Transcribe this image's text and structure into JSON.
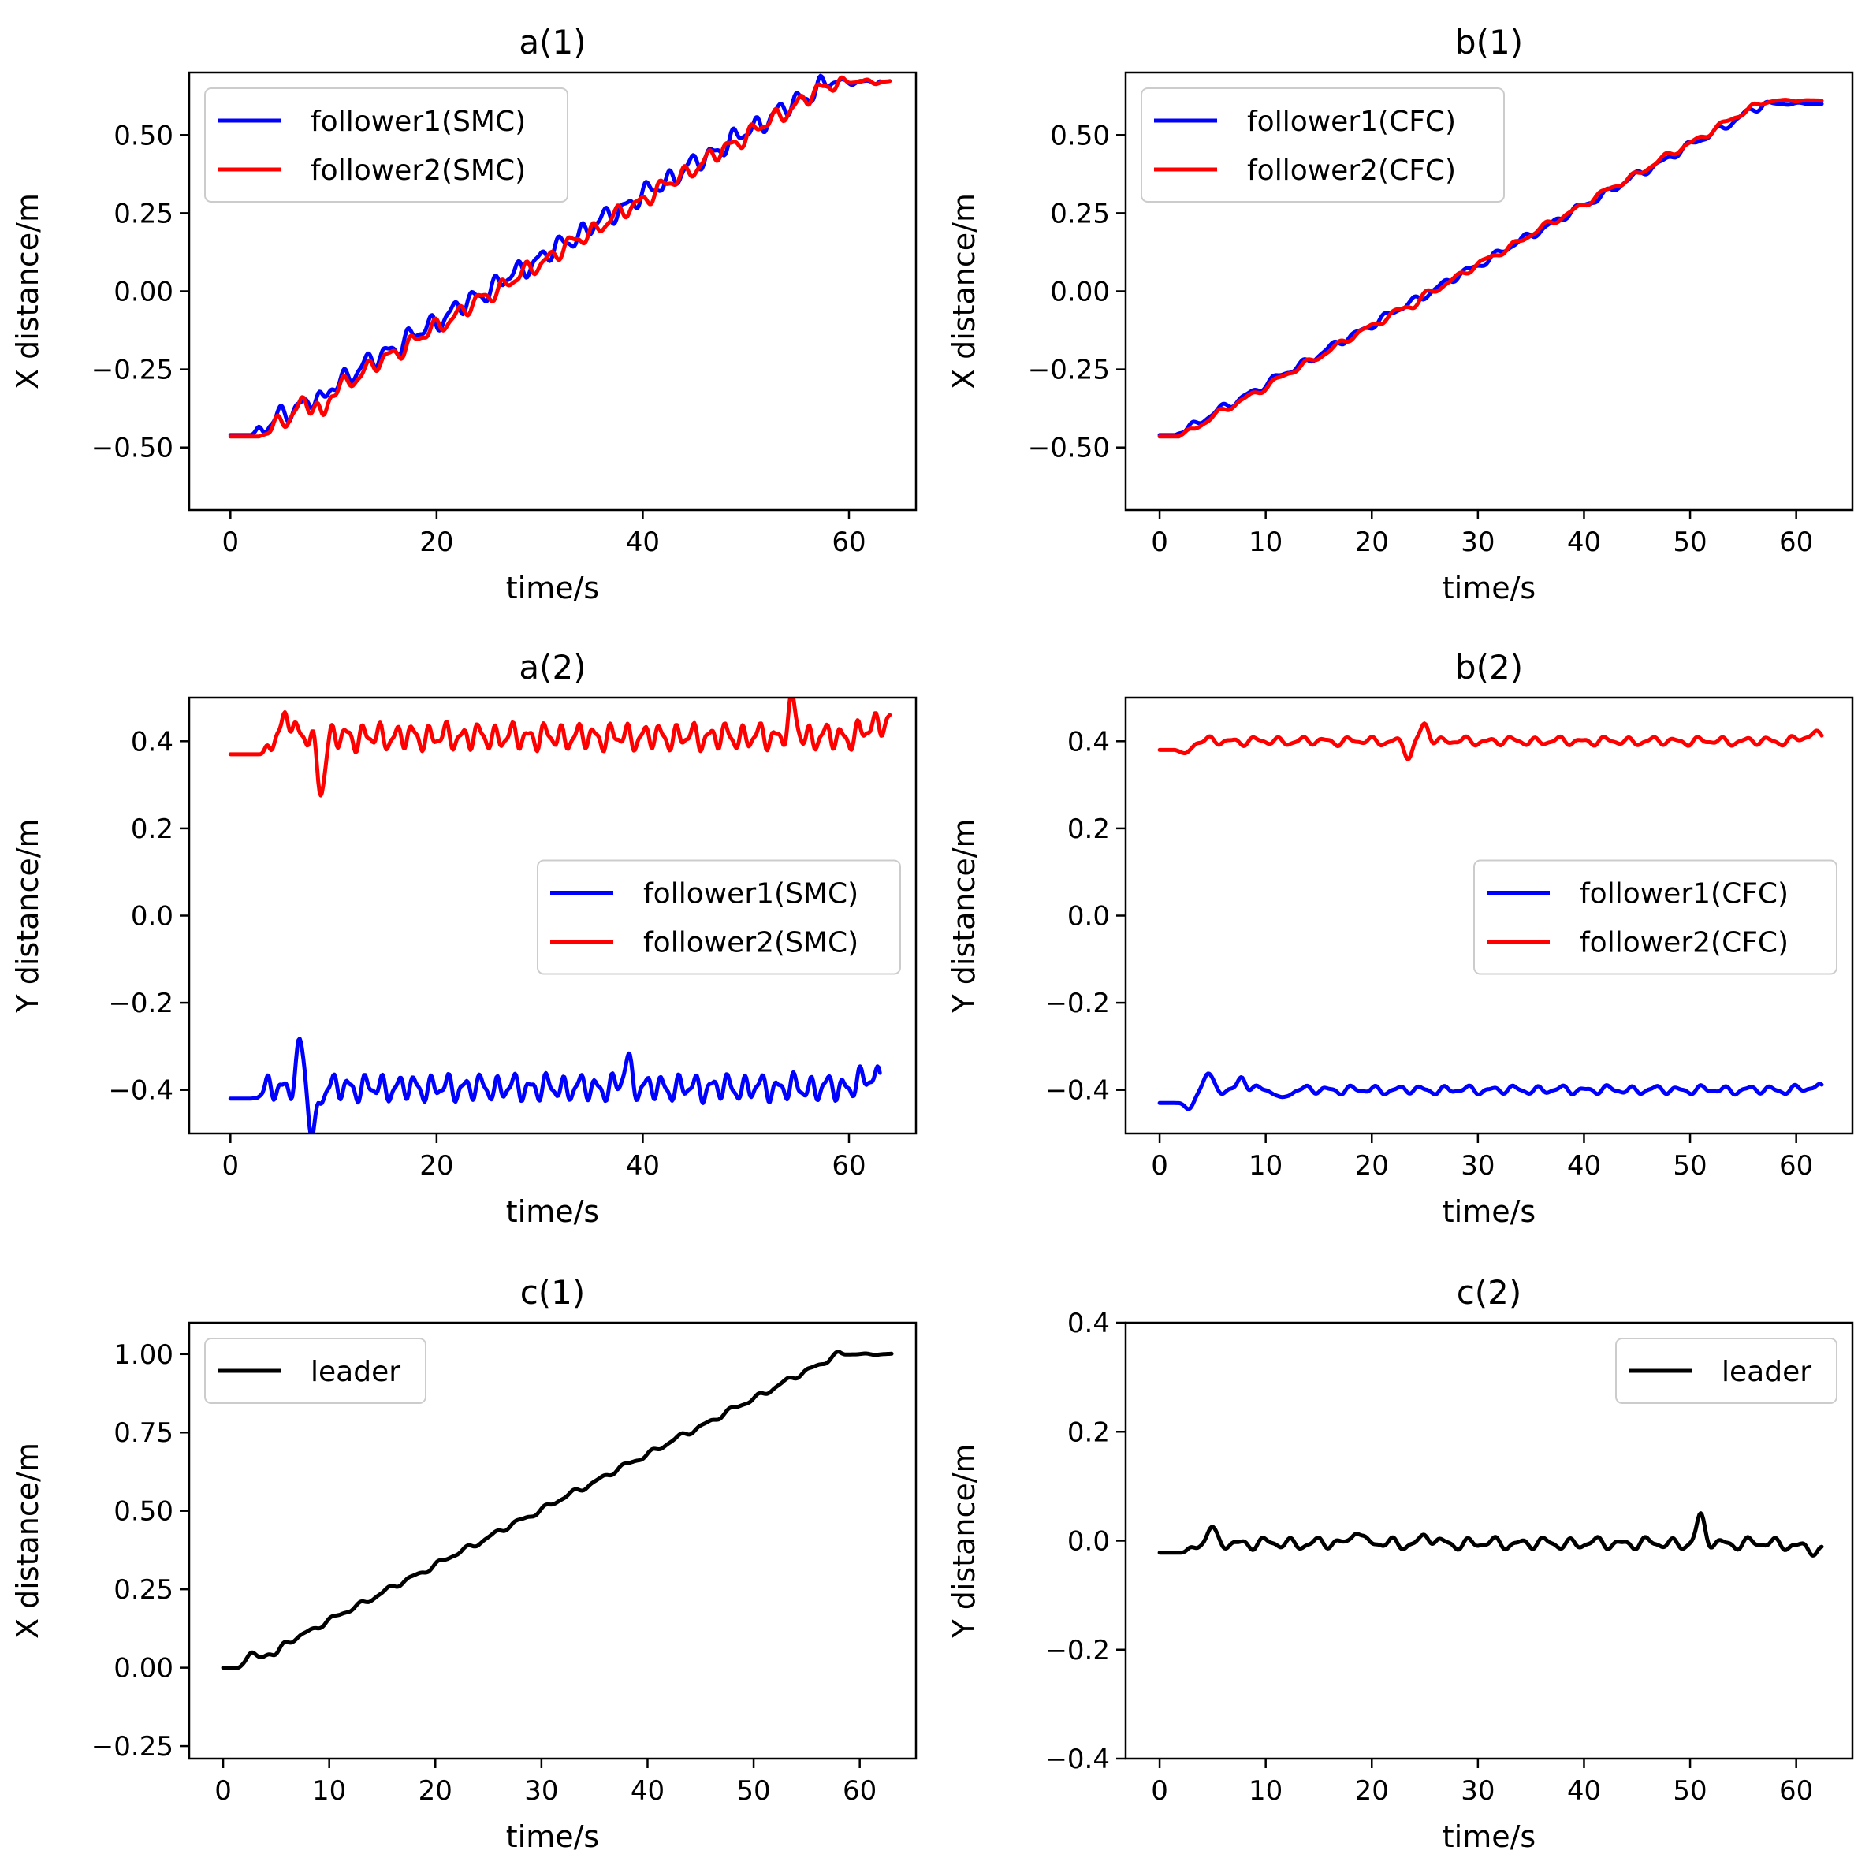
{
  "figure": {
    "colors": {
      "follower1": "#0000ff",
      "follower2": "#ff0000",
      "leader": "#000000"
    }
  },
  "chart_data": [
    {
      "id": "a1",
      "type": "line",
      "title": "a(1)",
      "xlabel": "time/s",
      "ylabel": "X distance/m",
      "xlim": [
        -4,
        66.5
      ],
      "ylim": [
        -0.7,
        0.7
      ],
      "xticks": [
        0,
        20,
        40,
        60
      ],
      "xtick_labels": [
        "0",
        "20",
        "40",
        "60"
      ],
      "yticks": [
        -0.5,
        -0.25,
        0,
        0.25,
        0.5
      ],
      "ytick_labels": [
        "−0.50",
        "−0.25",
        "0.00",
        "0.25",
        "0.50"
      ],
      "legend": {
        "position": "top-left"
      },
      "series": [
        {
          "name": "follower1(SMC)",
          "color": "#0000ff",
          "gen": {
            "t0": 0,
            "t1": 63,
            "start": 2.0,
            "v0": -0.46,
            "v1": 0.67,
            "end": 58,
            "osc": 0.03,
            "period": 2.1,
            "phase": 0.0,
            "bumps": [
              [
                9,
                -0.04
              ]
            ]
          },
          "x": [
            0,
            2,
            5,
            10,
            15,
            20,
            25,
            30,
            35,
            40,
            45,
            50,
            55,
            58,
            60,
            63
          ],
          "y": [
            -0.46,
            -0.46,
            -0.37,
            -0.25,
            -0.16,
            -0.07,
            0.03,
            0.11,
            0.22,
            0.32,
            0.41,
            0.52,
            0.6,
            0.67,
            0.66,
            0.67
          ]
        },
        {
          "name": "follower2(SMC)",
          "color": "#ff0000",
          "gen": {
            "t0": 0,
            "t1": 64,
            "start": 2.8,
            "v0": -0.465,
            "v1": 0.67,
            "end": 58.5,
            "osc": 0.025,
            "period": 2.2,
            "phase": 1.5,
            "bumps": [
              [
                9,
                -0.07
              ],
              [
                7,
                0.03
              ]
            ]
          },
          "x": [
            0,
            2.8,
            5,
            10,
            15,
            20,
            25,
            30,
            35,
            40,
            45,
            50,
            55,
            58.5,
            60,
            64
          ],
          "y": [
            -0.465,
            -0.465,
            -0.4,
            -0.3,
            -0.19,
            -0.1,
            0.01,
            0.09,
            0.19,
            0.29,
            0.38,
            0.48,
            0.58,
            0.67,
            0.66,
            0.67
          ]
        }
      ]
    },
    {
      "id": "b1",
      "type": "line",
      "title": "b(1)",
      "xlabel": "time/s",
      "ylabel": "X distance/m",
      "xlim": [
        -3.2,
        65.3
      ],
      "ylim": [
        -0.7,
        0.7
      ],
      "xticks": [
        0,
        10,
        20,
        30,
        40,
        50,
        60
      ],
      "xtick_labels": [
        "0",
        "10",
        "20",
        "30",
        "40",
        "50",
        "60"
      ],
      "yticks": [
        -0.5,
        -0.25,
        0,
        0.25,
        0.5
      ],
      "ytick_labels": [
        "−0.50",
        "−0.25",
        "0.00",
        "0.25",
        "0.50"
      ],
      "legend": {
        "position": "top-left"
      },
      "series": [
        {
          "name": "follower1(CFC)",
          "color": "#0000ff",
          "gen": {
            "t0": 0,
            "t1": 62.5,
            "start": 1.5,
            "v0": -0.46,
            "v1": 0.6,
            "end": 57,
            "osc": 0.012,
            "period": 2.6,
            "phase": 0.3,
            "bumps": []
          },
          "x": [
            0,
            1.5,
            5,
            10,
            20,
            30,
            40,
            50,
            57,
            62.5
          ],
          "y": [
            -0.46,
            -0.46,
            -0.39,
            -0.28,
            -0.11,
            0.1,
            0.27,
            0.47,
            0.6,
            0.6
          ]
        },
        {
          "name": "follower2(CFC)",
          "color": "#ff0000",
          "gen": {
            "t0": 0,
            "t1": 62.5,
            "start": 1.8,
            "v0": -0.465,
            "v1": 0.61,
            "end": 57,
            "osc": 0.01,
            "period": 2.8,
            "phase": 1.8,
            "bumps": [
              [
                24,
                -0.015
              ]
            ]
          },
          "x": [
            0,
            1.8,
            5,
            10,
            20,
            30,
            40,
            50,
            57,
            62.5
          ],
          "y": [
            -0.465,
            -0.465,
            -0.39,
            -0.29,
            -0.12,
            0.09,
            0.26,
            0.46,
            0.61,
            0.61
          ]
        }
      ]
    },
    {
      "id": "a2",
      "type": "line",
      "title": "a(2)",
      "xlabel": "time/s",
      "ylabel": "Y distance/m",
      "xlim": [
        -4,
        66.5
      ],
      "ylim": [
        -0.5,
        0.5
      ],
      "xticks": [
        0,
        20,
        40,
        60
      ],
      "xtick_labels": [
        "0",
        "20",
        "40",
        "60"
      ],
      "yticks": [
        -0.4,
        -0.2,
        0,
        0.2,
        0.4
      ],
      "ytick_labels": [
        "−0.4",
        "−0.2",
        "0.0",
        "0.2",
        "0.4"
      ],
      "legend": {
        "position": "center-right"
      },
      "series": [
        {
          "name": "follower1(SMC)",
          "color": "#0000ff",
          "gen": {
            "t0": 0,
            "t1": 63,
            "start": 2.0,
            "v0": -0.42,
            "v1": -0.37,
            "base": -0.395,
            "osc": 0.028,
            "period": 1.6,
            "phase": 0.4,
            "bumps": [
              [
                6.8,
                0.09
              ],
              [
                8.0,
                -0.11
              ],
              [
                38.5,
                0.06
              ]
            ]
          },
          "x": [
            0,
            2,
            7,
            8,
            20,
            38.5,
            50,
            63
          ],
          "y": [
            -0.42,
            -0.42,
            -0.29,
            -0.5,
            -0.4,
            -0.31,
            -0.44,
            -0.37
          ]
        },
        {
          "name": "follower2(SMC)",
          "color": "#ff0000",
          "gen": {
            "t0": 0,
            "t1": 64,
            "start": 2.8,
            "v0": 0.37,
            "v1": 0.45,
            "base": 0.41,
            "osc": 0.028,
            "period": 1.6,
            "phase": 1.2,
            "bumps": [
              [
                5.5,
                0.06
              ],
              [
                8.8,
                -0.11
              ],
              [
                54.5,
                0.07
              ]
            ]
          },
          "x": [
            0,
            2.8,
            5.5,
            8.8,
            20,
            40,
            54.5,
            64
          ],
          "y": [
            0.37,
            0.37,
            0.48,
            0.27,
            0.41,
            0.41,
            0.5,
            0.45
          ]
        }
      ]
    },
    {
      "id": "b2",
      "type": "line",
      "title": "b(2)",
      "xlabel": "time/s",
      "ylabel": "Y distance/m",
      "xlim": [
        -3.2,
        65.3
      ],
      "ylim": [
        -0.5,
        0.5
      ],
      "xticks": [
        0,
        10,
        20,
        30,
        40,
        50,
        60
      ],
      "xtick_labels": [
        "0",
        "10",
        "20",
        "30",
        "40",
        "50",
        "60"
      ],
      "yticks": [
        -0.4,
        -0.2,
        0,
        0.2,
        0.4
      ],
      "ytick_labels": [
        "−0.4",
        "−0.2",
        "0.0",
        "0.2",
        "0.4"
      ],
      "legend": {
        "position": "center-right"
      },
      "series": [
        {
          "name": "follower1(CFC)",
          "color": "#0000ff",
          "gen": {
            "t0": 0,
            "t1": 62.5,
            "start": 1.5,
            "v0": -0.43,
            "v1": -0.395,
            "base": -0.4,
            "osc": 0.009,
            "period": 2.2,
            "phase": 0.2,
            "bumps": [
              [
                2.8,
                -0.04
              ],
              [
                4.5,
                0.035
              ],
              [
                7.8,
                0.03
              ],
              [
                11.5,
                -0.025
              ]
            ]
          },
          "x": [
            0,
            1.5,
            2.8,
            4.5,
            7.8,
            11.5,
            30,
            62.5
          ],
          "y": [
            -0.43,
            -0.43,
            -0.46,
            -0.37,
            -0.36,
            -0.43,
            -0.4,
            -0.395
          ]
        },
        {
          "name": "follower2(CFC)",
          "color": "#ff0000",
          "gen": {
            "t0": 0,
            "t1": 62.5,
            "start": 1.5,
            "v0": 0.38,
            "v1": 0.415,
            "base": 0.4,
            "osc": 0.009,
            "period": 2.2,
            "phase": 1.0,
            "bumps": [
              [
                2.5,
                -0.02
              ],
              [
                23.5,
                -0.035
              ],
              [
                25.0,
                0.04
              ]
            ]
          },
          "x": [
            0,
            1.5,
            2.5,
            23.5,
            25,
            40,
            62.5
          ],
          "y": [
            0.38,
            0.38,
            0.37,
            0.36,
            0.44,
            0.4,
            0.415
          ]
        }
      ]
    },
    {
      "id": "c1",
      "type": "line",
      "title": "c(1)",
      "xlabel": "time/s",
      "ylabel": "X distance/m",
      "xlim": [
        -3.2,
        65.3
      ],
      "ylim": [
        -0.29,
        1.1
      ],
      "xticks": [
        0,
        10,
        20,
        30,
        40,
        50,
        60
      ],
      "xtick_labels": [
        "0",
        "10",
        "20",
        "30",
        "40",
        "50",
        "60"
      ],
      "yticks": [
        -0.25,
        0,
        0.25,
        0.5,
        0.75,
        1.0
      ],
      "ytick_labels": [
        "−0.25",
        "0.00",
        "0.25",
        "0.50",
        "0.75",
        "1.00"
      ],
      "legend": {
        "position": "top-left"
      },
      "series": [
        {
          "name": "leader",
          "color": "#000000",
          "gen": {
            "t0": 0,
            "t1": 63,
            "start": 1.5,
            "v0": 0.0,
            "v1": 1.0,
            "end": 58,
            "osc": 0.008,
            "period": 2.5,
            "phase": 0.5,
            "bumps": [
              [
                2.5,
                0.025
              ],
              [
                5.0,
                -0.02
              ]
            ]
          },
          "x": [
            0,
            1.5,
            5,
            10,
            20,
            30,
            40,
            50,
            58,
            61,
            63
          ],
          "y": [
            0.0,
            0.0,
            0.0,
            0.08,
            0.27,
            0.45,
            0.65,
            0.84,
            1.0,
            1.01,
            0.99
          ]
        }
      ]
    },
    {
      "id": "c2",
      "type": "line",
      "title": "c(2)",
      "xlabel": "time/s",
      "ylabel": "Y distance/m",
      "xlim": [
        -3.2,
        65.3
      ],
      "ylim": [
        -0.4,
        0.4
      ],
      "xticks": [
        0,
        10,
        20,
        30,
        40,
        50,
        60
      ],
      "xtick_labels": [
        "0",
        "10",
        "20",
        "30",
        "40",
        "50",
        "60"
      ],
      "yticks": [
        -0.4,
        -0.2,
        0,
        0.2,
        0.4
      ],
      "ytick_labels": [
        "−0.4",
        "−0.2",
        "0.0",
        "0.2",
        "0.4"
      ],
      "legend": {
        "position": "top-right"
      },
      "series": [
        {
          "name": "leader",
          "color": "#000000",
          "gen": {
            "t0": 0,
            "t1": 62.5,
            "start": 2.0,
            "v0": -0.022,
            "v1": -0.02,
            "base": -0.005,
            "osc": 0.01,
            "period": 2.4,
            "phase": 0.7,
            "bumps": [
              [
                4.8,
                0.025
              ],
              [
                18.5,
                0.03
              ],
              [
                51.0,
                0.045
              ],
              [
                25.2,
                0.015
              ]
            ]
          },
          "x": [
            0,
            2,
            4.8,
            18.5,
            30,
            41,
            51,
            62.5
          ],
          "y": [
            -0.022,
            -0.022,
            0.015,
            0.028,
            -0.005,
            0.02,
            0.045,
            -0.02
          ]
        }
      ]
    }
  ]
}
